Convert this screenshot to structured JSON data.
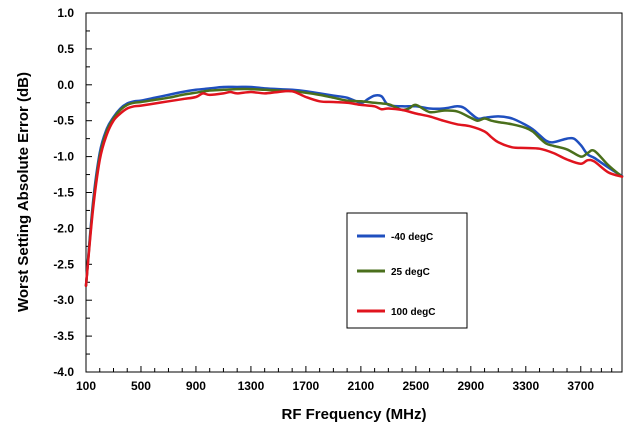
{
  "chart_data": {
    "type": "line",
    "xlabel": "RF Frequency (MHz)",
    "ylabel": "Worst Setting Absolute Error (dB)",
    "xlim": [
      100,
      4000
    ],
    "ylim": [
      -4.0,
      1.0
    ],
    "x_ticks": [
      "100",
      "500",
      "900",
      "1300",
      "1700",
      "2100",
      "2500",
      "2900",
      "3300",
      "3700"
    ],
    "y_ticks": [
      "1.0",
      "0.5",
      "0.0",
      "-0.5",
      "-1.0",
      "-1.5",
      "-2.0",
      "-2.5",
      "-3.0",
      "-3.5",
      "-4.0"
    ],
    "grid": false,
    "legend_position": "lower-center",
    "series": [
      {
        "name": "-40 degC",
        "color": "#1f4fbf",
        "points": [
          [
            100,
            -2.8
          ],
          [
            150,
            -1.65
          ],
          [
            200,
            -0.95
          ],
          [
            250,
            -0.62
          ],
          [
            300,
            -0.45
          ],
          [
            350,
            -0.33
          ],
          [
            400,
            -0.26
          ],
          [
            450,
            -0.23
          ],
          [
            500,
            -0.22
          ],
          [
            600,
            -0.18
          ],
          [
            700,
            -0.14
          ],
          [
            800,
            -0.1
          ],
          [
            900,
            -0.07
          ],
          [
            1000,
            -0.05
          ],
          [
            1100,
            -0.03
          ],
          [
            1200,
            -0.03
          ],
          [
            1300,
            -0.03
          ],
          [
            1400,
            -0.05
          ],
          [
            1500,
            -0.06
          ],
          [
            1600,
            -0.07
          ],
          [
            1700,
            -0.09
          ],
          [
            1800,
            -0.12
          ],
          [
            1900,
            -0.15
          ],
          [
            2000,
            -0.18
          ],
          [
            2100,
            -0.25
          ],
          [
            2150,
            -0.2
          ],
          [
            2200,
            -0.15
          ],
          [
            2250,
            -0.16
          ],
          [
            2300,
            -0.28
          ],
          [
            2400,
            -0.3
          ],
          [
            2500,
            -0.3
          ],
          [
            2600,
            -0.33
          ],
          [
            2700,
            -0.33
          ],
          [
            2800,
            -0.3
          ],
          [
            2850,
            -0.32
          ],
          [
            2900,
            -0.4
          ],
          [
            2950,
            -0.47
          ],
          [
            3000,
            -0.46
          ],
          [
            3100,
            -0.44
          ],
          [
            3200,
            -0.47
          ],
          [
            3300,
            -0.56
          ],
          [
            3350,
            -0.62
          ],
          [
            3400,
            -0.7
          ],
          [
            3450,
            -0.78
          ],
          [
            3500,
            -0.8
          ],
          [
            3600,
            -0.75
          ],
          [
            3650,
            -0.75
          ],
          [
            3700,
            -0.84
          ],
          [
            3750,
            -0.97
          ],
          [
            3800,
            -1.02
          ],
          [
            3900,
            -1.15
          ],
          [
            4000,
            -1.27
          ]
        ]
      },
      {
        "name": "25 degC",
        "color": "#4a6f1c",
        "points": [
          [
            100,
            -2.8
          ],
          [
            150,
            -1.7
          ],
          [
            200,
            -1.0
          ],
          [
            250,
            -0.65
          ],
          [
            300,
            -0.47
          ],
          [
            350,
            -0.35
          ],
          [
            400,
            -0.28
          ],
          [
            450,
            -0.25
          ],
          [
            500,
            -0.24
          ],
          [
            600,
            -0.21
          ],
          [
            700,
            -0.18
          ],
          [
            800,
            -0.14
          ],
          [
            900,
            -0.11
          ],
          [
            1000,
            -0.08
          ],
          [
            1100,
            -0.07
          ],
          [
            1200,
            -0.06
          ],
          [
            1300,
            -0.06
          ],
          [
            1400,
            -0.07
          ],
          [
            1500,
            -0.08
          ],
          [
            1600,
            -0.09
          ],
          [
            1700,
            -0.11
          ],
          [
            1800,
            -0.14
          ],
          [
            1900,
            -0.18
          ],
          [
            2000,
            -0.22
          ],
          [
            2100,
            -0.23
          ],
          [
            2200,
            -0.25
          ],
          [
            2300,
            -0.27
          ],
          [
            2350,
            -0.31
          ],
          [
            2400,
            -0.35
          ],
          [
            2450,
            -0.33
          ],
          [
            2500,
            -0.28
          ],
          [
            2600,
            -0.38
          ],
          [
            2700,
            -0.36
          ],
          [
            2800,
            -0.37
          ],
          [
            2900,
            -0.46
          ],
          [
            2950,
            -0.5
          ],
          [
            3000,
            -0.47
          ],
          [
            3050,
            -0.5
          ],
          [
            3100,
            -0.52
          ],
          [
            3200,
            -0.55
          ],
          [
            3300,
            -0.6
          ],
          [
            3350,
            -0.65
          ],
          [
            3400,
            -0.74
          ],
          [
            3450,
            -0.82
          ],
          [
            3500,
            -0.85
          ],
          [
            3600,
            -0.9
          ],
          [
            3700,
            -1.0
          ],
          [
            3750,
            -0.95
          ],
          [
            3800,
            -0.92
          ],
          [
            3900,
            -1.12
          ],
          [
            4000,
            -1.28
          ]
        ]
      },
      {
        "name": "100 degC",
        "color": "#e0141e",
        "points": [
          [
            100,
            -2.8
          ],
          [
            150,
            -1.75
          ],
          [
            200,
            -1.05
          ],
          [
            250,
            -0.7
          ],
          [
            300,
            -0.5
          ],
          [
            350,
            -0.4
          ],
          [
            400,
            -0.33
          ],
          [
            450,
            -0.3
          ],
          [
            500,
            -0.29
          ],
          [
            600,
            -0.26
          ],
          [
            700,
            -0.23
          ],
          [
            800,
            -0.2
          ],
          [
            900,
            -0.17
          ],
          [
            950,
            -0.12
          ],
          [
            1000,
            -0.14
          ],
          [
            1100,
            -0.12
          ],
          [
            1150,
            -0.1
          ],
          [
            1200,
            -0.12
          ],
          [
            1300,
            -0.1
          ],
          [
            1400,
            -0.12
          ],
          [
            1500,
            -0.1
          ],
          [
            1600,
            -0.09
          ],
          [
            1700,
            -0.17
          ],
          [
            1800,
            -0.23
          ],
          [
            1900,
            -0.24
          ],
          [
            2000,
            -0.25
          ],
          [
            2100,
            -0.28
          ],
          [
            2200,
            -0.3
          ],
          [
            2250,
            -0.34
          ],
          [
            2300,
            -0.33
          ],
          [
            2400,
            -0.35
          ],
          [
            2500,
            -0.4
          ],
          [
            2600,
            -0.44
          ],
          [
            2700,
            -0.5
          ],
          [
            2800,
            -0.55
          ],
          [
            2900,
            -0.58
          ],
          [
            3000,
            -0.65
          ],
          [
            3050,
            -0.73
          ],
          [
            3100,
            -0.8
          ],
          [
            3200,
            -0.87
          ],
          [
            3300,
            -0.88
          ],
          [
            3400,
            -0.89
          ],
          [
            3500,
            -0.95
          ],
          [
            3600,
            -1.04
          ],
          [
            3700,
            -1.1
          ],
          [
            3750,
            -1.05
          ],
          [
            3800,
            -1.07
          ],
          [
            3900,
            -1.22
          ],
          [
            4000,
            -1.28
          ]
        ]
      }
    ]
  }
}
